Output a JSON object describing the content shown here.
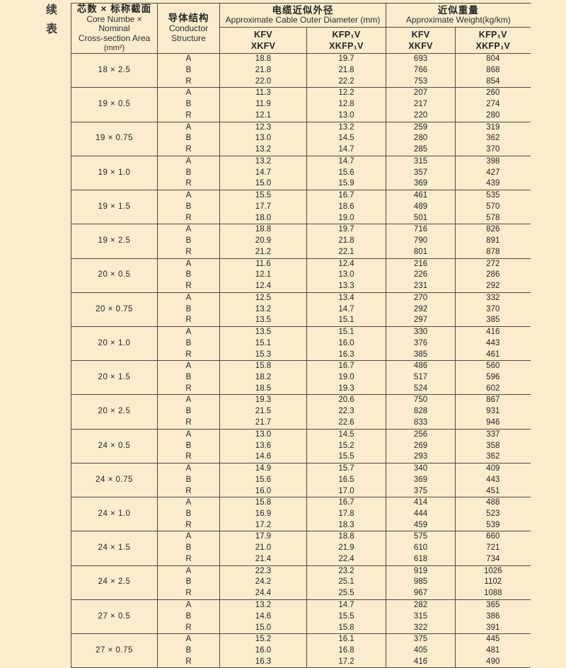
{
  "page": {
    "continued_label": "续表",
    "background_color": "#faeccd",
    "line_color": "#4f4a40",
    "text_color": "#262626"
  },
  "table": {
    "header": {
      "spec": {
        "zh": "芯数 × 标称截面",
        "en1": "Core Numbe × Nominal",
        "en2": "Cross-section Area",
        "en3": "(mm²)"
      },
      "structure": {
        "zh": "导体结构",
        "en1": "Conductor",
        "en2": "Structure"
      },
      "diameter": {
        "zh": "电缆近似外径",
        "en": "Approximate Cable Outer Diameter (mm)"
      },
      "weight": {
        "zh": "近似重量",
        "en": "Approximate Weight(kg/km)"
      },
      "sub_headers": [
        {
          "line1": "KFV",
          "line2": "XKFV"
        },
        {
          "line1": "KFP₁V",
          "line2": "XKFP₁V"
        },
        {
          "line1": "KFV",
          "line2": "XKFV"
        },
        {
          "line1": "KFP₁V",
          "line2": "XKFP₁V"
        }
      ]
    },
    "groups": [
      {
        "spec": "18 × 2.5",
        "rows": [
          {
            "structure": "A",
            "dia_kfv": "18.8",
            "dia_kfp": "19.7",
            "wt_kfv": "693",
            "wt_kfp": "804"
          },
          {
            "structure": "B",
            "dia_kfv": "21.8",
            "dia_kfp": "21.8",
            "wt_kfv": "766",
            "wt_kfp": "868"
          },
          {
            "structure": "R",
            "dia_kfv": "22.0",
            "dia_kfp": "22.2",
            "wt_kfv": "753",
            "wt_kfp": "854"
          }
        ]
      },
      {
        "spec": "19 × 0.5",
        "rows": [
          {
            "structure": "A",
            "dia_kfv": "11.3",
            "dia_kfp": "12.2",
            "wt_kfv": "207",
            "wt_kfp": "260"
          },
          {
            "structure": "B",
            "dia_kfv": "11.9",
            "dia_kfp": "12.8",
            "wt_kfv": "217",
            "wt_kfp": "274"
          },
          {
            "structure": "R",
            "dia_kfv": "12.1",
            "dia_kfp": "13.0",
            "wt_kfv": "220",
            "wt_kfp": "280"
          }
        ]
      },
      {
        "spec": "19 × 0.75",
        "rows": [
          {
            "structure": "A",
            "dia_kfv": "12.3",
            "dia_kfp": "13.2",
            "wt_kfv": "259",
            "wt_kfp": "319"
          },
          {
            "structure": "B",
            "dia_kfv": "13.0",
            "dia_kfp": "14.5",
            "wt_kfv": "280",
            "wt_kfp": "362"
          },
          {
            "structure": "R",
            "dia_kfv": "13.2",
            "dia_kfp": "14.7",
            "wt_kfv": "285",
            "wt_kfp": "370"
          }
        ]
      },
      {
        "spec": "19 × 1.0",
        "rows": [
          {
            "structure": "A",
            "dia_kfv": "13.2",
            "dia_kfp": "14.7",
            "wt_kfv": "315",
            "wt_kfp": "398"
          },
          {
            "structure": "B",
            "dia_kfv": "14.7",
            "dia_kfp": "15.6",
            "wt_kfv": "357",
            "wt_kfp": "427"
          },
          {
            "structure": "R",
            "dia_kfv": "15.0",
            "dia_kfp": "15.9",
            "wt_kfv": "369",
            "wt_kfp": "439"
          }
        ]
      },
      {
        "spec": "19 × 1.5",
        "rows": [
          {
            "structure": "A",
            "dia_kfv": "15.5",
            "dia_kfp": "16.7",
            "wt_kfv": "461",
            "wt_kfp": "535"
          },
          {
            "structure": "B",
            "dia_kfv": "17.7",
            "dia_kfp": "18.6",
            "wt_kfv": "489",
            "wt_kfp": "570"
          },
          {
            "structure": "R",
            "dia_kfv": "18.0",
            "dia_kfp": "19.0",
            "wt_kfv": "501",
            "wt_kfp": "578"
          }
        ]
      },
      {
        "spec": "19 × 2.5",
        "rows": [
          {
            "structure": "A",
            "dia_kfv": "18.8",
            "dia_kfp": "19.7",
            "wt_kfv": "716",
            "wt_kfp": "826"
          },
          {
            "structure": "B",
            "dia_kfv": "20.9",
            "dia_kfp": "21.8",
            "wt_kfv": "790",
            "wt_kfp": "891"
          },
          {
            "structure": "R",
            "dia_kfv": "21.2",
            "dia_kfp": "22.1",
            "wt_kfv": "801",
            "wt_kfp": "878"
          }
        ]
      },
      {
        "spec": "20 × 0.5",
        "rows": [
          {
            "structure": "A",
            "dia_kfv": "11.6",
            "dia_kfp": "12.4",
            "wt_kfv": "216",
            "wt_kfp": "272"
          },
          {
            "structure": "B",
            "dia_kfv": "12.1",
            "dia_kfp": "13.0",
            "wt_kfv": "226",
            "wt_kfp": "286"
          },
          {
            "structure": "R",
            "dia_kfv": "12.4",
            "dia_kfp": "13.3",
            "wt_kfv": "231",
            "wt_kfp": "292"
          }
        ]
      },
      {
        "spec": "20 × 0.75",
        "rows": [
          {
            "structure": "A",
            "dia_kfv": "12.5",
            "dia_kfp": "13.4",
            "wt_kfv": "270",
            "wt_kfp": "332"
          },
          {
            "structure": "B",
            "dia_kfv": "13.2",
            "dia_kfp": "14.7",
            "wt_kfv": "292",
            "wt_kfp": "370"
          },
          {
            "structure": "R",
            "dia_kfv": "13.5",
            "dia_kfp": "15.1",
            "wt_kfv": "297",
            "wt_kfp": "385"
          }
        ]
      },
      {
        "spec": "20 × 1.0",
        "rows": [
          {
            "structure": "A",
            "dia_kfv": "13.5",
            "dia_kfp": "15.1",
            "wt_kfv": "330",
            "wt_kfp": "416"
          },
          {
            "structure": "B",
            "dia_kfv": "15.1",
            "dia_kfp": "16.0",
            "wt_kfv": "376",
            "wt_kfp": "443"
          },
          {
            "structure": "R",
            "dia_kfv": "15.3",
            "dia_kfp": "16.3",
            "wt_kfv": "385",
            "wt_kfp": "461"
          }
        ]
      },
      {
        "spec": "20 × 1.5",
        "rows": [
          {
            "structure": "A",
            "dia_kfv": "15.8",
            "dia_kfp": "16.7",
            "wt_kfv": "486",
            "wt_kfp": "560"
          },
          {
            "structure": "B",
            "dia_kfv": "18.2",
            "dia_kfp": "19.0",
            "wt_kfv": "517",
            "wt_kfp": "596"
          },
          {
            "structure": "R",
            "dia_kfv": "18.5",
            "dia_kfp": "19.3",
            "wt_kfv": "524",
            "wt_kfp": "602"
          }
        ]
      },
      {
        "spec": "20 × 2.5",
        "rows": [
          {
            "structure": "A",
            "dia_kfv": "19.3",
            "dia_kfp": "20.6",
            "wt_kfv": "750",
            "wt_kfp": "867"
          },
          {
            "structure": "B",
            "dia_kfv": "21.5",
            "dia_kfp": "22.3",
            "wt_kfv": "828",
            "wt_kfp": "931"
          },
          {
            "structure": "R",
            "dia_kfv": "21.7",
            "dia_kfp": "22.6",
            "wt_kfv": "833",
            "wt_kfp": "946"
          }
        ]
      },
      {
        "spec": "24 × 0.5",
        "rows": [
          {
            "structure": "A",
            "dia_kfv": "13.0",
            "dia_kfp": "14.5",
            "wt_kfv": "256",
            "wt_kfp": "337"
          },
          {
            "structure": "B",
            "dia_kfv": "13.6",
            "dia_kfp": "15.2",
            "wt_kfv": "269",
            "wt_kfp": "358"
          },
          {
            "structure": "R",
            "dia_kfv": "14.6",
            "dia_kfp": "15.5",
            "wt_kfv": "293",
            "wt_kfp": "362"
          }
        ]
      },
      {
        "spec": "24 × 0.75",
        "rows": [
          {
            "structure": "A",
            "dia_kfv": "14.9",
            "dia_kfp": "15.7",
            "wt_kfv": "340",
            "wt_kfp": "409"
          },
          {
            "structure": "B",
            "dia_kfv": "15.6",
            "dia_kfp": "16.5",
            "wt_kfv": "369",
            "wt_kfp": "443"
          },
          {
            "structure": "R",
            "dia_kfv": "16.0",
            "dia_kfp": "17.0",
            "wt_kfv": "375",
            "wt_kfp": "451"
          }
        ]
      },
      {
        "spec": "24 × 1.0",
        "rows": [
          {
            "structure": "A",
            "dia_kfv": "15.8",
            "dia_kfp": "16.7",
            "wt_kfv": "414",
            "wt_kfp": "488"
          },
          {
            "structure": "B",
            "dia_kfv": "16.9",
            "dia_kfp": "17.8",
            "wt_kfv": "444",
            "wt_kfp": "523"
          },
          {
            "structure": "R",
            "dia_kfv": "17.2",
            "dia_kfp": "18.3",
            "wt_kfv": "459",
            "wt_kfp": "539"
          }
        ]
      },
      {
        "spec": "24 × 1.5",
        "rows": [
          {
            "structure": "A",
            "dia_kfv": "17.9",
            "dia_kfp": "18.8",
            "wt_kfv": "575",
            "wt_kfp": "660"
          },
          {
            "structure": "B",
            "dia_kfv": "21.0",
            "dia_kfp": "21.9",
            "wt_kfv": "610",
            "wt_kfp": "721"
          },
          {
            "structure": "R",
            "dia_kfv": "21.4",
            "dia_kfp": "22.4",
            "wt_kfv": "618",
            "wt_kfp": "734"
          }
        ]
      },
      {
        "spec": "24 × 2.5",
        "rows": [
          {
            "structure": "A",
            "dia_kfv": "22.3",
            "dia_kfp": "23.2",
            "wt_kfv": "919",
            "wt_kfp": "1026"
          },
          {
            "structure": "B",
            "dia_kfv": "24.2",
            "dia_kfp": "25.1",
            "wt_kfv": "985",
            "wt_kfp": "1102"
          },
          {
            "structure": "R",
            "dia_kfv": "24.4",
            "dia_kfp": "25.5",
            "wt_kfv": "967",
            "wt_kfp": "1088"
          }
        ]
      },
      {
        "spec": "27 × 0.5",
        "rows": [
          {
            "structure": "A",
            "dia_kfv": "13.2",
            "dia_kfp": "14.7",
            "wt_kfv": "282",
            "wt_kfp": "365"
          },
          {
            "structure": "B",
            "dia_kfv": "14.6",
            "dia_kfp": "15.5",
            "wt_kfv": "315",
            "wt_kfp": "386"
          },
          {
            "structure": "R",
            "dia_kfv": "15.0",
            "dia_kfp": "15.8",
            "wt_kfv": "322",
            "wt_kfp": "391"
          }
        ]
      },
      {
        "spec": "27 × 0.75",
        "rows": [
          {
            "structure": "A",
            "dia_kfv": "15.2",
            "dia_kfp": "16.1",
            "wt_kfv": "375",
            "wt_kfp": "445"
          },
          {
            "structure": "B",
            "dia_kfv": "16.0",
            "dia_kfp": "16.8",
            "wt_kfv": "405",
            "wt_kfp": "481"
          },
          {
            "structure": "R",
            "dia_kfv": "16.3",
            "dia_kfp": "17.2",
            "wt_kfv": "416",
            "wt_kfp": "490"
          }
        ]
      }
    ]
  }
}
